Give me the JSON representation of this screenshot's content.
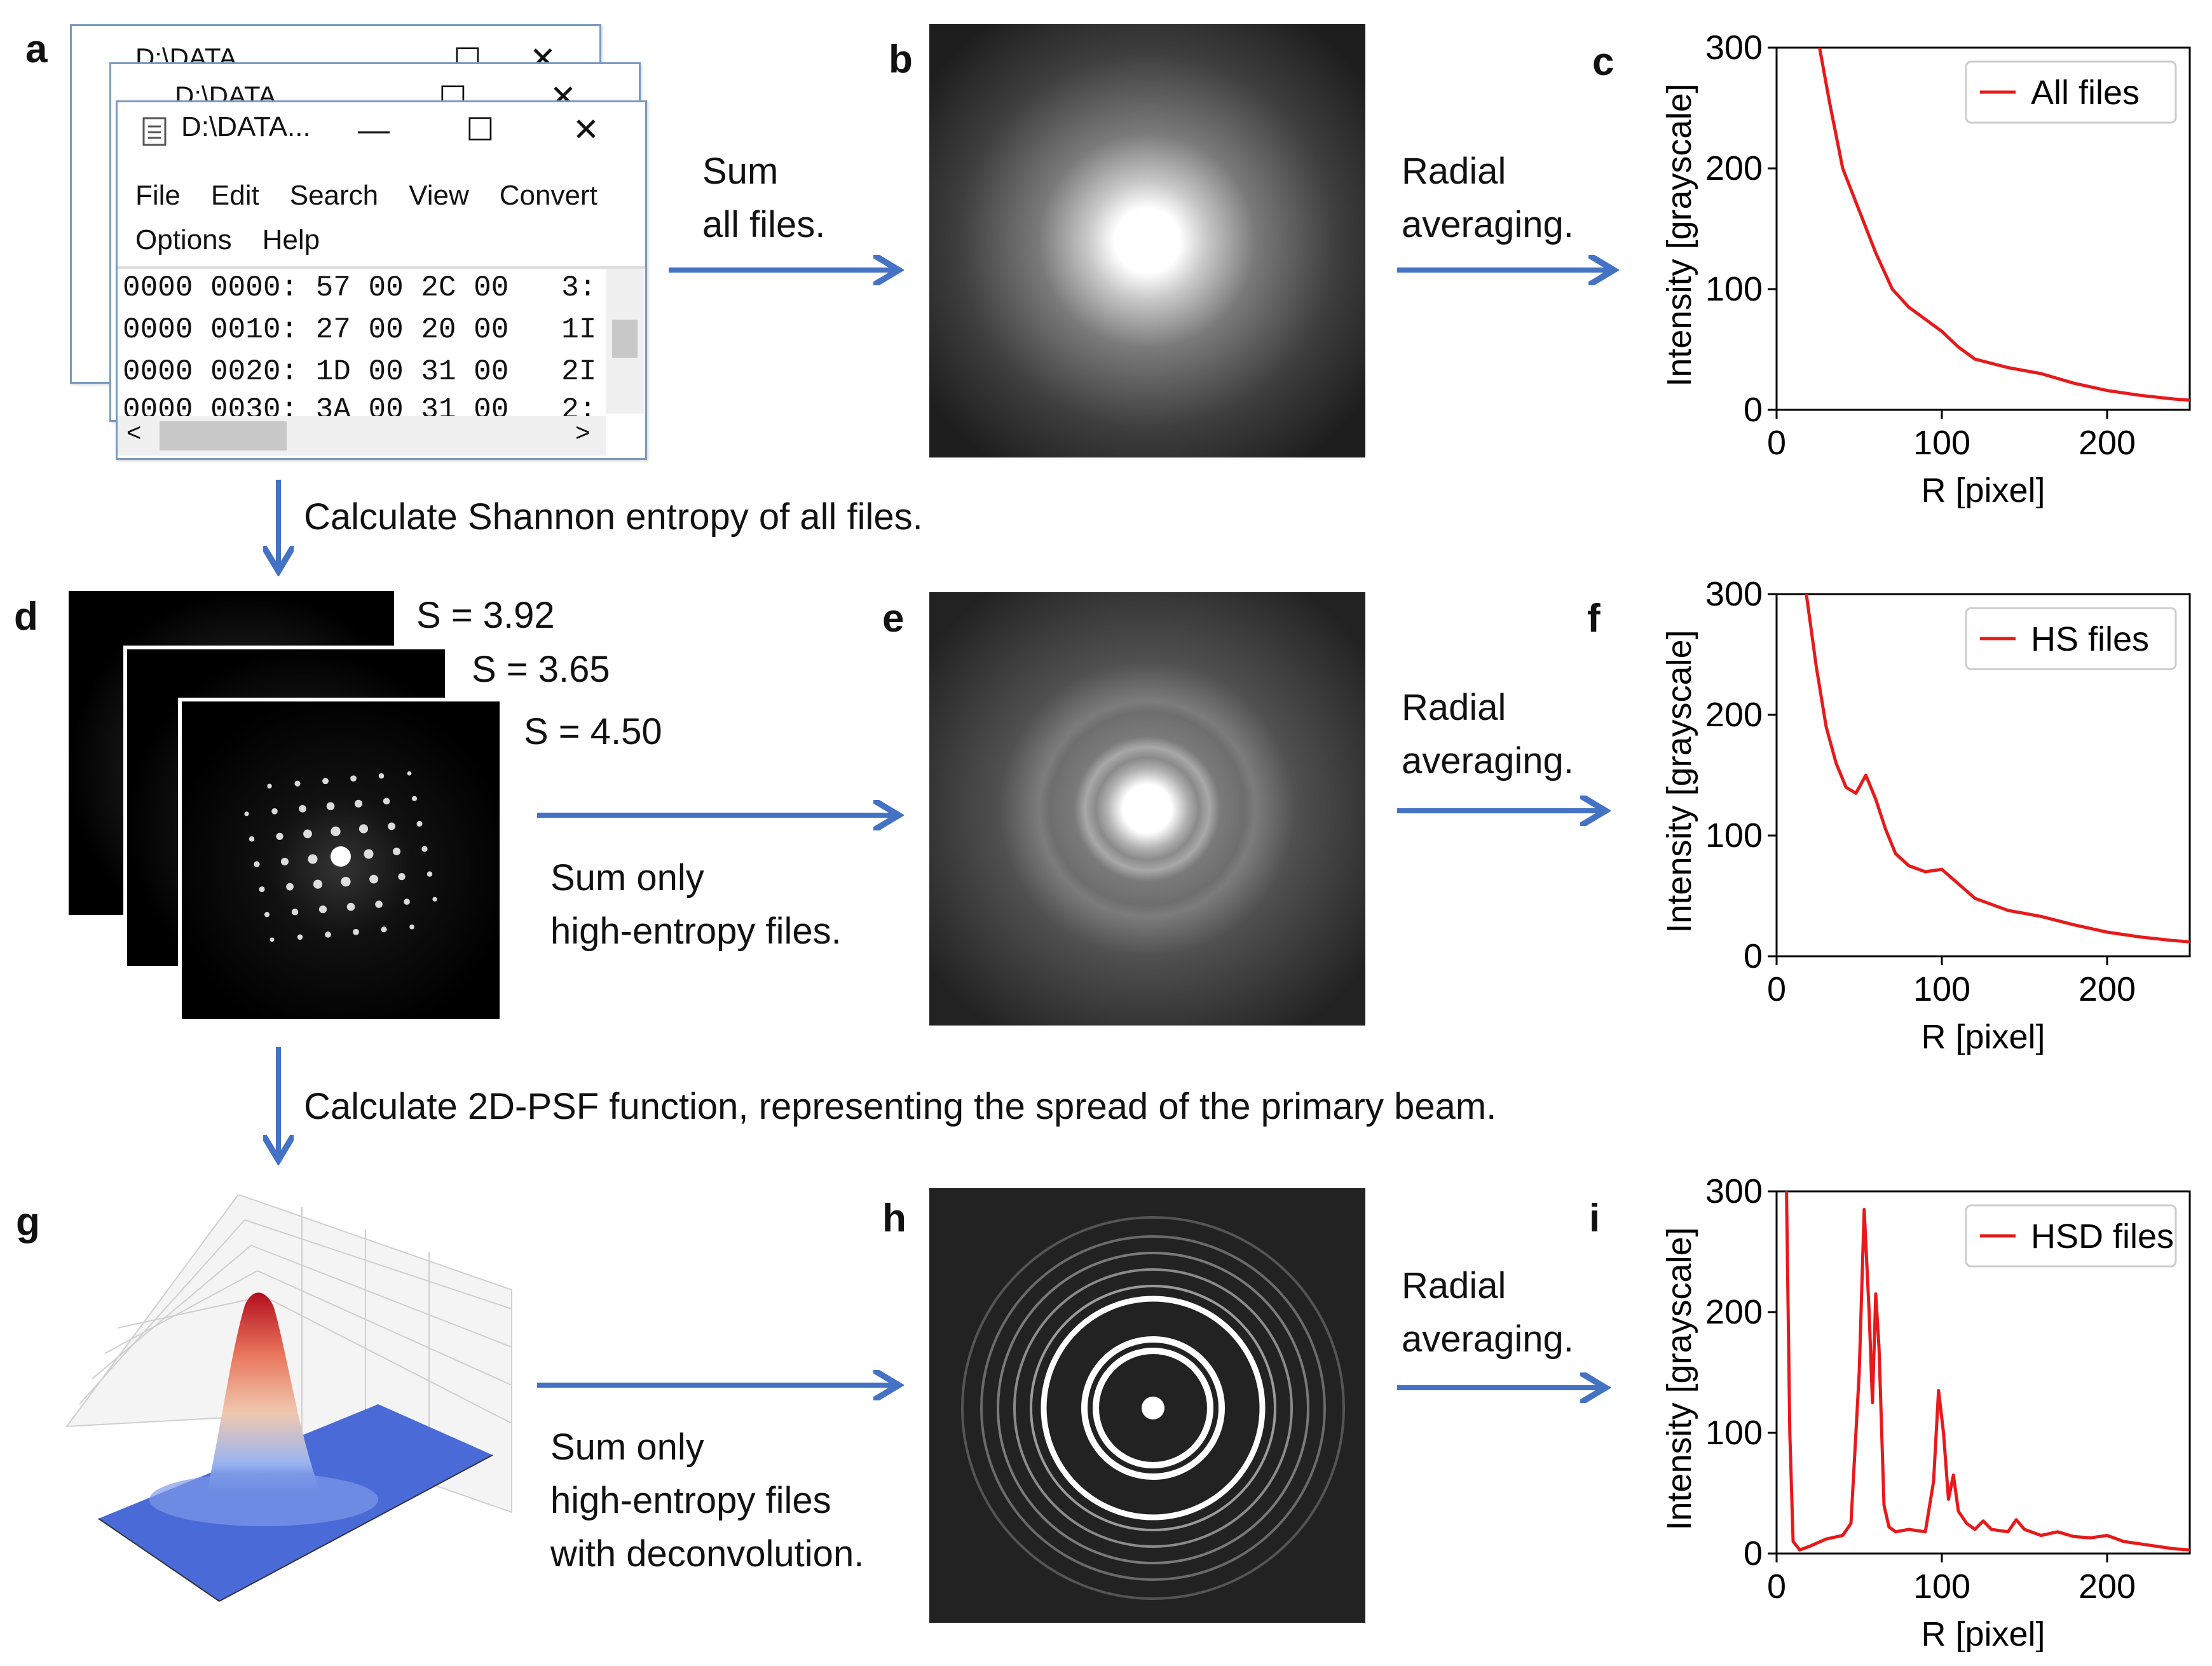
{
  "panel_labels": [
    "a",
    "b",
    "c",
    "d",
    "e",
    "f",
    "g",
    "h",
    "i"
  ],
  "hex_window": {
    "title": "D:\\DATA...",
    "back_title": "D:\\DATA",
    "minimize": "—",
    "maximize": "☐",
    "close": "✕",
    "menu_row1": [
      "File",
      "Edit",
      "Search",
      "View",
      "Convert"
    ],
    "menu_row2": [
      "Options",
      "Help"
    ],
    "hex_lines": [
      "0000 0000: 57 00 2C 00   3:",
      "0000 0010: 27 00 20 00   1I",
      "0000 0020: 1D 00 31 00   2I",
      "0000 0030: 3A 00 31 00   2:"
    ],
    "scroll_left": "<",
    "scroll_right": ">"
  },
  "captions": {
    "sum_all_1": "Sum",
    "sum_all_2": "all files.",
    "radial_1": "Radial",
    "radial_2": "averaging.",
    "entropy_step": "Calculate Shannon entropy of all files.",
    "sum_hs_1": "Sum only",
    "sum_hs_2": "high-entropy files.",
    "psf_step": "Calculate 2D-PSF function, representing the spread of the primary beam.",
    "sum_hsd_1": "Sum only",
    "sum_hsd_2": "high-entropy files",
    "sum_hsd_3": "with deconvolution."
  },
  "entropy_values": [
    "S = 3.92",
    "S = 3.65",
    "S = 4.50"
  ],
  "colors": {
    "arrow": "#4472c4",
    "curve": "#e8191a"
  },
  "chart_data": [
    {
      "type": "line",
      "legend": "All files",
      "xlabel": "R [pixel]",
      "ylabel": "Intensity [grayscale]",
      "xlim": [
        0,
        250
      ],
      "ylim": [
        0,
        300
      ],
      "xticks": [
        0,
        100,
        200
      ],
      "yticks": [
        0,
        100,
        200,
        300
      ],
      "x": [
        26,
        32,
        40,
        50,
        60,
        70,
        80,
        90,
        100,
        110,
        120,
        140,
        160,
        180,
        200,
        220,
        240,
        250
      ],
      "y": [
        300,
        255,
        200,
        165,
        130,
        100,
        85,
        75,
        65,
        52,
        42,
        35,
        30,
        22,
        16,
        12,
        9,
        8
      ]
    },
    {
      "type": "line",
      "legend": "HS files",
      "xlabel": "R [pixel]",
      "ylabel": "Intensity [grayscale]",
      "xlim": [
        0,
        250
      ],
      "ylim": [
        0,
        300
      ],
      "xticks": [
        0,
        100,
        200
      ],
      "yticks": [
        0,
        100,
        200,
        300
      ],
      "x": [
        18,
        24,
        30,
        36,
        42,
        48,
        54,
        60,
        66,
        72,
        80,
        90,
        100,
        110,
        120,
        140,
        160,
        180,
        200,
        220,
        240,
        250
      ],
      "y": [
        300,
        240,
        190,
        160,
        140,
        135,
        150,
        130,
        105,
        85,
        75,
        70,
        72,
        60,
        48,
        38,
        33,
        26,
        20,
        16,
        13,
        12
      ]
    },
    {
      "type": "line",
      "legend": "HSD files",
      "xlabel": "R [pixel]",
      "ylabel": "Intensity [grayscale]",
      "xlim": [
        0,
        250
      ],
      "ylim": [
        0,
        300
      ],
      "xticks": [
        0,
        100,
        200
      ],
      "yticks": [
        0,
        100,
        200,
        300
      ],
      "x": [
        6,
        8,
        10,
        14,
        20,
        30,
        40,
        45,
        50,
        53,
        56,
        58,
        60,
        62,
        65,
        68,
        72,
        80,
        90,
        95,
        98,
        101,
        104,
        107,
        110,
        115,
        120,
        125,
        130,
        140,
        145,
        150,
        160,
        170,
        180,
        190,
        200,
        210,
        220,
        240,
        250
      ],
      "y": [
        300,
        100,
        10,
        3,
        6,
        12,
        15,
        25,
        150,
        285,
        200,
        125,
        215,
        170,
        40,
        22,
        18,
        20,
        18,
        60,
        135,
        100,
        45,
        65,
        35,
        25,
        20,
        27,
        20,
        18,
        28,
        20,
        15,
        18,
        14,
        13,
        15,
        10,
        8,
        4,
        3
      ]
    }
  ]
}
